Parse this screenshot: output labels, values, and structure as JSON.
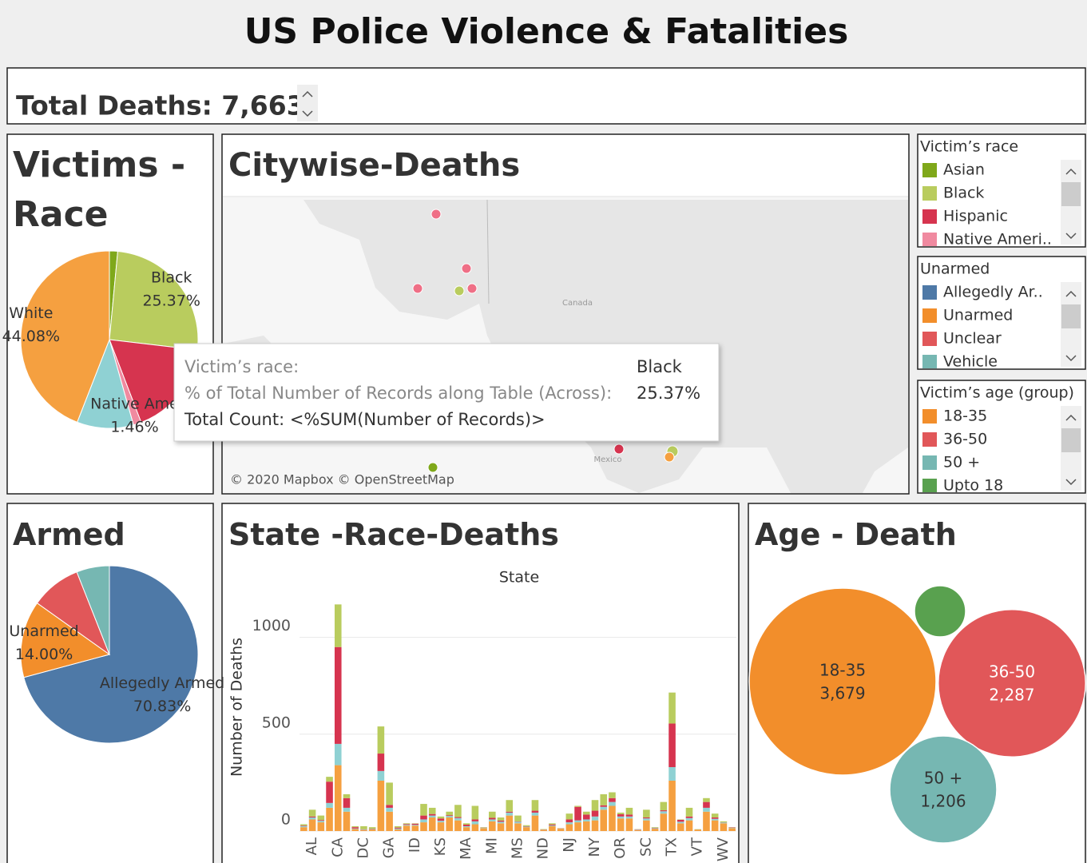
{
  "header": {
    "title": "US Police Violence & Fatalities",
    "kpi": "Total Deaths: 7,663"
  },
  "map": {
    "title": "Citywise-Deaths",
    "place_labels": [
      "Canada",
      "Mexico"
    ],
    "attribution": "© 2020 Mapbox © OpenStreetMap",
    "tooltip": {
      "rows": [
        [
          "Victim’s race:",
          "Black"
        ],
        [
          "% of Total Number of Records along Table (Across):",
          "25.37%"
        ]
      ],
      "footer": "Total Count: <%SUM(Number of Records)>"
    }
  },
  "legends": [
    {
      "title": "Victim’s race",
      "items": [
        {
          "name": "Asian",
          "color": "#7fa81a"
        },
        {
          "name": "Black",
          "color": "#b9cc5e"
        },
        {
          "name": "Hispanic",
          "color": "#d6344f"
        },
        {
          "name": "Native Ameri..",
          "color": "#f08aa0"
        }
      ]
    },
    {
      "title": "Unarmed",
      "items": [
        {
          "name": "Allegedly Ar..",
          "color": "#4e79a7"
        },
        {
          "name": "Unarmed",
          "color": "#f28e2b"
        },
        {
          "name": "Unclear",
          "color": "#e15759"
        },
        {
          "name": "Vehicle",
          "color": "#76b7b2"
        }
      ]
    },
    {
      "title": "Victim’s age (group)",
      "items": [
        {
          "name": "18-35",
          "color": "#f28e2b"
        },
        {
          "name": "36-50",
          "color": "#e15759"
        },
        {
          "name": "50 +",
          "color": "#76b7b2"
        },
        {
          "name": "Upto 18",
          "color": "#59a14f"
        }
      ]
    }
  ],
  "chart_data": [
    {
      "type": "pie",
      "title": "Victims - Race",
      "categories": [
        null,
        "Black",
        null,
        "Native Ame",
        null,
        "White"
      ],
      "values": [
        1.5,
        25.37,
        17.3,
        1.46,
        10.3,
        44.08
      ],
      "value_labels": [
        null,
        "25.37%",
        null,
        "1.46%",
        null,
        "44.08%"
      ],
      "colors": [
        "#7fa81a",
        "#b9cc5e",
        "#d6344f",
        "#f08aa0",
        "#8fd1d3",
        "#f5a040"
      ]
    },
    {
      "type": "pie",
      "title": "Armed",
      "categories": [
        "Allegedly Armed",
        "Unarmed",
        null,
        null
      ],
      "values": [
        70.83,
        14.0,
        9.17,
        6.0
      ],
      "value_labels": [
        "70.83%",
        "14.00%",
        null,
        null
      ],
      "colors": [
        "#4e79a7",
        "#f28e2b",
        "#e15759",
        "#76b7b2"
      ]
    },
    {
      "type": "bar",
      "stacked": true,
      "title": "State -Race-Deaths",
      "x_label": "State",
      "y_label": "Number of Deaths",
      "categories": [
        null,
        "AL",
        null,
        null,
        "CA",
        null,
        null,
        "DC",
        null,
        null,
        "GA",
        null,
        null,
        "ID",
        null,
        null,
        "KS",
        null,
        null,
        "MA",
        null,
        null,
        "MI",
        null,
        null,
        "MS",
        null,
        null,
        "ND",
        null,
        null,
        "NJ",
        null,
        null,
        "NY",
        null,
        null,
        "OR",
        null,
        null,
        "SC",
        null,
        null,
        "TX",
        null,
        null,
        "VT",
        null,
        null,
        "WV",
        null
      ],
      "series": [
        {
          "name": "White",
          "color": "#f5a040",
          "values": [
            20,
            60,
            45,
            120,
            340,
            100,
            10,
            5,
            8,
            260,
            100,
            8,
            28,
            28,
            45,
            70,
            45,
            70,
            55,
            20,
            35,
            15,
            50,
            40,
            80,
            40,
            20,
            80,
            6,
            25,
            12,
            35,
            45,
            50,
            55,
            110,
            130,
            65,
            65,
            5,
            55,
            12,
            90,
            260,
            40,
            55,
            8,
            100,
            55,
            40,
            15
          ]
        },
        {
          "name": null,
          "color": "#8fd1d3",
          "values": [
            5,
            10,
            8,
            25,
            110,
            20,
            3,
            2,
            2,
            50,
            20,
            5,
            4,
            4,
            15,
            10,
            8,
            8,
            12,
            5,
            15,
            2,
            10,
            8,
            15,
            8,
            3,
            15,
            1,
            4,
            1,
            10,
            10,
            10,
            20,
            15,
            20,
            10,
            10,
            2,
            10,
            3,
            12,
            70,
            8,
            12,
            1,
            20,
            8,
            4,
            2
          ]
        },
        {
          "name": "Hispanic",
          "color": "#d6344f",
          "values": [
            3,
            5,
            4,
            110,
            500,
            50,
            7,
            2,
            2,
            90,
            15,
            5,
            4,
            6,
            20,
            8,
            12,
            4,
            5,
            8,
            10,
            1,
            8,
            6,
            5,
            2,
            2,
            10,
            1,
            5,
            1,
            15,
            70,
            25,
            30,
            8,
            20,
            12,
            10,
            2,
            5,
            2,
            5,
            225,
            10,
            8,
            0,
            30,
            7,
            1,
            2
          ]
        },
        {
          "name": "Black",
          "color": "#b9cc5e",
          "values": [
            7,
            35,
            23,
            25,
            220,
            20,
            5,
            16,
            8,
            140,
            115,
            7,
            4,
            2,
            60,
            32,
            10,
            18,
            63,
            7,
            70,
            2,
            32,
            16,
            60,
            30,
            5,
            55,
            2,
            6,
            1,
            30,
            5,
            15,
            55,
            57,
            30,
            8,
            35,
            1,
            40,
            3,
            43,
            160,
            2,
            45,
            1,
            20,
            20,
            5,
            1
          ]
        }
      ],
      "ylim": [
        0,
        1250
      ],
      "yticks": [
        0,
        500,
        1000
      ],
      "grid": true
    },
    {
      "type": "bubble",
      "title": "Age - Death",
      "categories": [
        "18-35",
        "36-50",
        "50 +",
        null
      ],
      "values": [
        3679,
        2287,
        1206,
        275
      ],
      "value_labels": [
        "3,679",
        "2,287",
        "1,206",
        null
      ],
      "colors": [
        "#f28e2b",
        "#e15759",
        "#76b7b2",
        "#59a14f"
      ]
    }
  ]
}
